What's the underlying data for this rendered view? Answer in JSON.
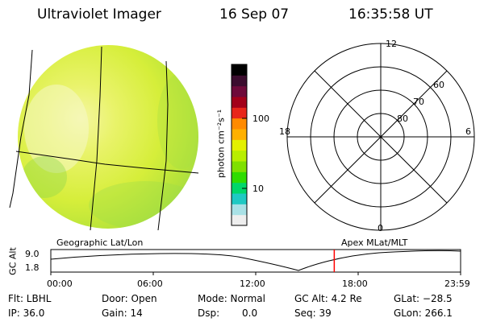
{
  "header": {
    "instrument": "Ultraviolet Imager",
    "date": "16 Sep 07",
    "time": "16:35:58 UT"
  },
  "colorbar": {
    "unit_label": "photon cm⁻²s⁻¹",
    "ticks": [
      "100",
      "10"
    ],
    "colors": [
      "#000000",
      "#3b0c2e",
      "#6e0a3a",
      "#a3001a",
      "#e8261a",
      "#ff8a00",
      "#ffb000",
      "#e3f000",
      "#b8ee00",
      "#7fe000",
      "#2fdc00",
      "#00d76a",
      "#1fc9c3",
      "#a9e1e6",
      "#eeeeee"
    ]
  },
  "polar_plot": {
    "hour_labels": {
      "top": "12",
      "left": "18",
      "right": "6",
      "bottom": "0"
    },
    "lat_labels": [
      "60",
      "70",
      "80"
    ]
  },
  "coords": {
    "left_label": "Geographic Lat/Lon",
    "right_label": "Apex MLat/MLT"
  },
  "altitude_plot": {
    "ylabel": "GC Alt",
    "y_ticks": [
      "9.0",
      "1.8"
    ],
    "x_ticks": [
      "00:00",
      "06:00",
      "12:00",
      "18:00",
      "23:59"
    ],
    "current_time_hours": 16.6,
    "marker_color": "#ff0000"
  },
  "status": {
    "filter": "Flt: LBHL",
    "ip": "IP: 36.0",
    "door": "Door: Open",
    "gain": "Gain: 14",
    "mode": "Mode: Normal",
    "dsp_label": "Dsp:",
    "dsp_value": "0.0",
    "gc_alt": "GC Alt: 4.2 Re",
    "seq": "Seq: 39",
    "glat": "GLat: −28.5",
    "glon": "GLon: 266.1"
  }
}
